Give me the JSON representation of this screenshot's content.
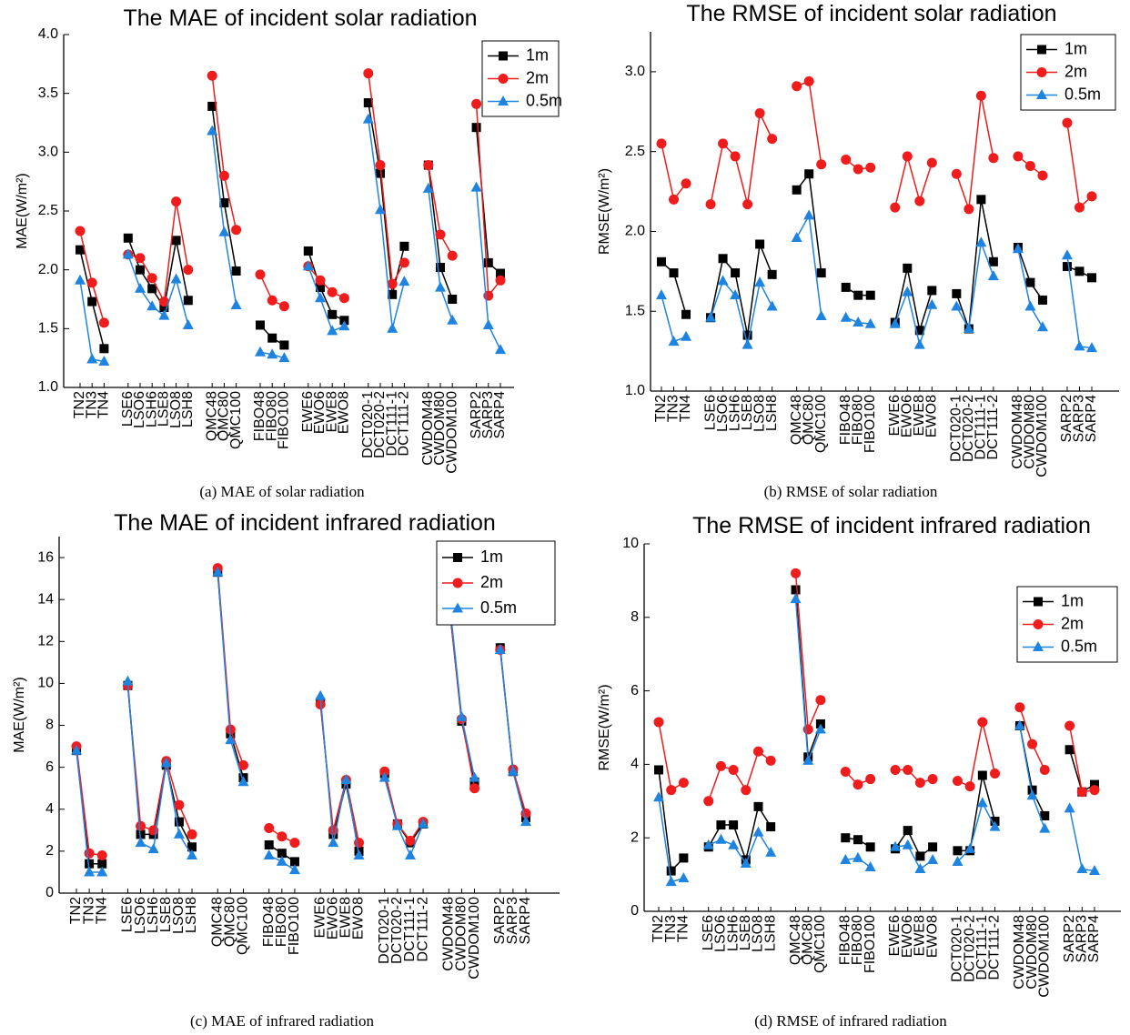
{
  "chart_data": [
    {
      "type": "line",
      "title": "The MAE of incident solar radiation",
      "ylabel": "MAE(W/m²)",
      "caption": "(a) MAE of solar radiation",
      "legend": "upper right",
      "categories": [
        "TN2",
        "TN3",
        "TN4",
        null,
        "LSE6",
        "LSO6",
        "LSH6",
        "LSE8",
        "LSO8",
        "LSH8",
        null,
        "QMC48",
        "QMC80",
        "QMC100",
        null,
        "FIBO48",
        "FIBO80",
        "FIBO100",
        null,
        "EWE6",
        "EWO6",
        "EWE8",
        "EWO8",
        null,
        "DCT020-1",
        "DCT020-2",
        "DCT111-1",
        "DCT111-2",
        null,
        "CWDOM48",
        "CWDOM80",
        "CWDOM100",
        null,
        "SARP2",
        "SARP3",
        "SARP4"
      ],
      "ylim": [
        1.0,
        4.0
      ],
      "yticks": [
        {
          "value": 1.0,
          "label": "1.0"
        },
        1.5,
        {
          "value": 2.0,
          "label": "2.0"
        },
        2.5,
        {
          "value": 3.0,
          "label": "3.0"
        },
        3.5,
        {
          "value": 4.0,
          "label": "4.0"
        }
      ],
      "series": [
        {
          "name": "1m",
          "color": "#000000",
          "marker": "square",
          "values": [
            2.17,
            1.73,
            1.33,
            null,
            2.27,
            2.0,
            1.84,
            1.68,
            2.25,
            1.74,
            null,
            3.39,
            2.57,
            1.99,
            null,
            1.53,
            1.42,
            1.36,
            null,
            2.16,
            1.85,
            1.62,
            1.57,
            null,
            3.42,
            2.82,
            1.79,
            2.2,
            null,
            2.89,
            2.02,
            1.75,
            null,
            3.21,
            2.06,
            1.97
          ]
        },
        {
          "name": "2m",
          "color": "#ee1c1c",
          "marker": "circle",
          "values": [
            2.33,
            1.89,
            1.55,
            null,
            2.13,
            2.1,
            1.93,
            1.73,
            2.58,
            2.0,
            null,
            3.65,
            2.8,
            2.34,
            null,
            1.96,
            1.74,
            1.69,
            null,
            2.03,
            1.91,
            1.81,
            1.76,
            null,
            3.67,
            2.89,
            1.88,
            2.06,
            null,
            2.89,
            2.3,
            2.12,
            null,
            3.41,
            1.78,
            1.91
          ]
        },
        {
          "name": "0.5m",
          "color": "#1f84e0",
          "marker": "triangle",
          "values": [
            1.91,
            1.24,
            1.22,
            null,
            2.13,
            1.84,
            1.69,
            1.61,
            1.92,
            1.53,
            null,
            3.18,
            2.32,
            1.7,
            null,
            1.3,
            1.28,
            1.25,
            null,
            2.03,
            1.76,
            1.48,
            1.52,
            null,
            3.28,
            2.51,
            1.5,
            1.9,
            null,
            2.69,
            1.85,
            1.57,
            null,
            2.7,
            1.53,
            1.32
          ]
        }
      ]
    },
    {
      "type": "line",
      "title": "The RMSE of incident solar radiation",
      "ylabel": "RMSE(W/m²)",
      "caption": "(b) RMSE of solar radiation",
      "legend": "upper right",
      "categories": [
        "TN2",
        "TN3",
        "TN4",
        null,
        "LSE6",
        "LSO6",
        "LSH6",
        "LSE8",
        "LSO8",
        "LSH8",
        null,
        "QMC48",
        "QMC80",
        "QMC100",
        null,
        "FIBO48",
        "FIBO80",
        "FIBO100",
        null,
        "EWE6",
        "EWO6",
        "EWE8",
        "EWO8",
        null,
        "DCT020-1",
        "DCT020-2",
        "DCT111-1",
        "DCT111-2",
        null,
        "CWDOM48",
        "CWDOM80",
        "CWDOM100",
        null,
        "SARP2",
        "SARP3",
        "SARP4"
      ],
      "ylim": [
        1.0,
        3.25
      ],
      "yticks": [
        {
          "value": 1.0,
          "label": "1.0"
        },
        1.5,
        {
          "value": 2.0,
          "label": "2.0"
        },
        2.5,
        {
          "value": 3.0,
          "label": "3.0"
        }
      ],
      "series": [
        {
          "name": "1m",
          "color": "#000000",
          "marker": "square",
          "values": [
            1.81,
            1.74,
            1.48,
            null,
            1.46,
            1.83,
            1.74,
            1.35,
            1.92,
            1.73,
            null,
            2.26,
            2.36,
            1.74,
            null,
            1.65,
            1.6,
            1.6,
            null,
            1.43,
            1.77,
            1.38,
            1.63,
            null,
            1.61,
            1.39,
            2.2,
            1.81,
            null,
            1.9,
            1.68,
            1.57,
            null,
            1.78,
            1.75,
            1.71
          ]
        },
        {
          "name": "2m",
          "color": "#ee1c1c",
          "marker": "circle",
          "values": [
            2.55,
            2.2,
            2.3,
            null,
            2.17,
            2.55,
            2.47,
            2.17,
            2.74,
            2.58,
            null,
            2.91,
            2.94,
            2.42,
            null,
            2.45,
            2.39,
            2.4,
            null,
            2.15,
            2.47,
            2.19,
            2.43,
            null,
            2.36,
            2.14,
            2.85,
            2.46,
            null,
            2.47,
            2.41,
            2.35,
            null,
            2.68,
            2.15,
            2.22
          ]
        },
        {
          "name": "0.5m",
          "color": "#1f84e0",
          "marker": "triangle",
          "values": [
            1.6,
            1.31,
            1.34,
            null,
            1.46,
            1.69,
            1.6,
            1.29,
            1.68,
            1.53,
            null,
            1.96,
            2.1,
            1.47,
            null,
            1.46,
            1.43,
            1.42,
            null,
            1.42,
            1.62,
            1.29,
            1.54,
            null,
            1.53,
            1.39,
            1.93,
            1.72,
            null,
            1.89,
            1.53,
            1.4,
            null,
            1.85,
            1.28,
            1.27
          ]
        }
      ]
    },
    {
      "type": "line",
      "title": "The MAE of incident infrared radiation",
      "ylabel": "MAE(W/m²)",
      "caption": "(c) MAE of infrared radiation",
      "legend": "upper right",
      "categories": [
        "TN2",
        "TN3",
        "TN4",
        null,
        "LSE6",
        "LSO6",
        "LSH6",
        "LSE8",
        "LSO8",
        "LSH8",
        null,
        "QMC48",
        "QMC80",
        "QMC100",
        null,
        "FIBO48",
        "FIBO80",
        "FIBO100",
        null,
        "EWE6",
        "EWO6",
        "EWE8",
        "EWO8",
        null,
        "DCT020-1",
        "DCT020-2",
        "DCT111-1",
        "DCT111-2",
        null,
        "CWDOM48",
        "CWDOM80",
        "CWDOM100",
        null,
        "SARP2",
        "SARP3",
        "SARP4"
      ],
      "ylim": [
        0,
        17
      ],
      "yticks": [
        0,
        2,
        4,
        6,
        8,
        10,
        12,
        14,
        16
      ],
      "series": [
        {
          "name": "1m",
          "color": "#000000",
          "marker": "square",
          "values": [
            6.8,
            1.4,
            1.4,
            null,
            9.9,
            2.8,
            2.8,
            6.1,
            3.4,
            2.2,
            null,
            15.3,
            7.6,
            5.5,
            null,
            2.3,
            1.9,
            1.5,
            null,
            9.1,
            2.8,
            5.2,
            2.0,
            null,
            5.7,
            3.3,
            2.4,
            3.3,
            null,
            13.9,
            8.2,
            5.3,
            null,
            11.7,
            5.8,
            3.6
          ]
        },
        {
          "name": "2m",
          "color": "#ee1c1c",
          "marker": "circle",
          "values": [
            7.0,
            1.9,
            1.8,
            null,
            9.9,
            3.2,
            3.0,
            6.3,
            4.2,
            2.8,
            null,
            15.5,
            7.8,
            6.1,
            null,
            3.1,
            2.7,
            2.4,
            null,
            9.0,
            3.0,
            5.4,
            2.4,
            null,
            5.8,
            3.3,
            2.5,
            3.4,
            null,
            13.9,
            8.3,
            5.0,
            null,
            11.6,
            5.9,
            3.8
          ]
        },
        {
          "name": "0.5m",
          "color": "#1f84e0",
          "marker": "triangle",
          "values": [
            6.8,
            1.0,
            1.0,
            null,
            10.1,
            2.4,
            2.1,
            6.2,
            2.8,
            1.8,
            null,
            15.3,
            7.3,
            5.3,
            null,
            1.8,
            1.5,
            1.1,
            null,
            9.4,
            2.4,
            5.4,
            1.8,
            null,
            5.5,
            3.2,
            1.8,
            3.3,
            null,
            14.2,
            8.4,
            5.5,
            null,
            11.6,
            5.8,
            3.4
          ]
        }
      ]
    },
    {
      "type": "line",
      "title": "The RMSE of incident infrared radiation",
      "ylabel": "RMSE(W/m²)",
      "caption": "(d) RMSE of infrared radiation",
      "legend": "upper right",
      "categories": [
        "TN2",
        "TN3",
        "TN4",
        null,
        "LSE6",
        "LSO6",
        "LSH6",
        "LSE8",
        "LSO8",
        "LSH8",
        null,
        "QMC48",
        "QMC80",
        "QMC100",
        null,
        "FIBO48",
        "FIBO80",
        "FIBO100",
        null,
        "EWE6",
        "EWO6",
        "EWE8",
        "EWO8",
        null,
        "DCT020-1",
        "DCT020-2",
        "DCT111-1",
        "DCT111-2",
        null,
        "CWDOM48",
        "CWDOM80",
        "CWDOM100",
        null,
        "SARP2",
        "SARP3",
        "SARP4"
      ],
      "ylim": [
        0,
        10
      ],
      "yticks": [
        0,
        2,
        4,
        6,
        8,
        10
      ],
      "series": [
        {
          "name": "1m",
          "color": "#000000",
          "marker": "square",
          "values": [
            3.85,
            1.1,
            1.45,
            null,
            1.75,
            2.35,
            2.35,
            1.4,
            2.85,
            2.3,
            null,
            8.75,
            4.2,
            5.1,
            null,
            2.0,
            1.95,
            1.75,
            null,
            1.7,
            2.2,
            1.5,
            1.75,
            null,
            1.65,
            1.65,
            3.7,
            2.45,
            null,
            5.05,
            3.3,
            2.6,
            null,
            4.4,
            3.25,
            3.45
          ]
        },
        {
          "name": "2m",
          "color": "#ee1c1c",
          "marker": "circle",
          "values": [
            5.15,
            3.3,
            3.5,
            null,
            3.0,
            3.95,
            3.85,
            3.3,
            4.35,
            4.1,
            null,
            9.2,
            4.95,
            5.75,
            null,
            3.8,
            3.45,
            3.6,
            null,
            3.85,
            3.85,
            3.5,
            3.6,
            null,
            3.55,
            3.4,
            5.15,
            3.75,
            null,
            5.55,
            4.55,
            3.85,
            null,
            5.05,
            3.25,
            3.3
          ]
        },
        {
          "name": "0.5m",
          "color": "#1f84e0",
          "marker": "triangle",
          "values": [
            3.1,
            0.8,
            0.9,
            null,
            1.8,
            1.95,
            1.8,
            1.3,
            2.15,
            1.6,
            null,
            8.5,
            4.1,
            4.95,
            null,
            1.4,
            1.45,
            1.2,
            null,
            1.75,
            1.8,
            1.15,
            1.4,
            null,
            1.35,
            1.7,
            2.95,
            2.3,
            null,
            5.05,
            3.15,
            2.25,
            null,
            2.8,
            1.15,
            1.1
          ]
        }
      ]
    }
  ]
}
